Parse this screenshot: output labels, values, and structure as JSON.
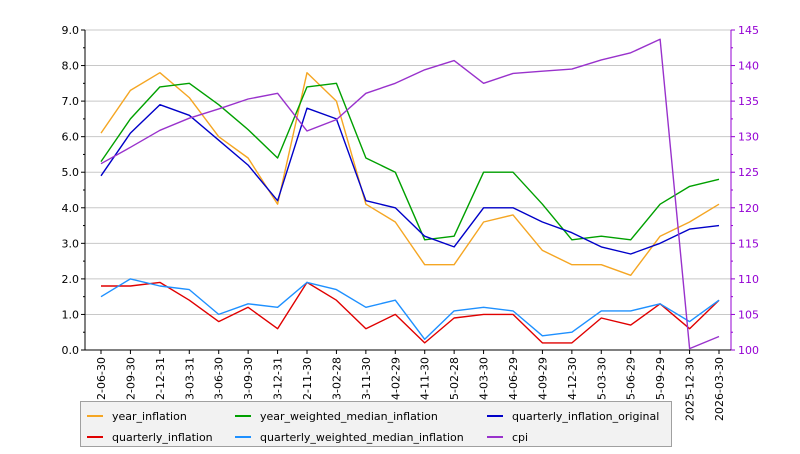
{
  "chart_data": {
    "type": "line",
    "categories": [
      "2-06-30",
      "2-09-30",
      "2-12-31",
      "3-03-31",
      "3-06-30",
      "3-09-30",
      "3-12-31",
      "2-11-30",
      "3-02-28",
      "3-11-30",
      "4-02-29",
      "4-11-30",
      "5-02-28",
      "4-03-30",
      "4-06-29",
      "4-09-29",
      "4-12-30",
      "5-03-30",
      "5-06-29",
      "5-09-29",
      "2025-12-30",
      "2026-03-30"
    ],
    "left_axis": {
      "ylim": [
        0,
        9
      ],
      "ticks": [
        "0.0",
        "1.0",
        "2.0",
        "3.0",
        "4.0",
        "5.0",
        "6.0",
        "7.0",
        "8.0",
        "9.0"
      ],
      "color": "#000000"
    },
    "right_axis": {
      "ylim": [
        100,
        145
      ],
      "ticks": [
        "100",
        "105",
        "110",
        "115",
        "120",
        "125",
        "130",
        "135",
        "140",
        "145"
      ],
      "color": "#9400d3"
    },
    "grid": "horizontal",
    "legend_position": "bottom",
    "series": [
      {
        "name": "year_inflation",
        "axis": "left",
        "color": "#f5a623",
        "values": [
          6.1,
          7.3,
          7.8,
          7.1,
          6.0,
          5.4,
          4.1,
          7.8,
          7.0,
          4.1,
          3.6,
          2.4,
          2.4,
          3.6,
          3.8,
          2.8,
          2.4,
          2.4,
          2.1,
          3.2,
          3.6,
          4.1
        ]
      },
      {
        "name": "year_weighted_median_inflation",
        "axis": "left",
        "color": "#00a000",
        "values": [
          5.3,
          6.5,
          7.4,
          7.5,
          6.9,
          6.2,
          5.4,
          7.4,
          7.5,
          5.4,
          5.0,
          3.1,
          3.2,
          5.0,
          5.0,
          4.1,
          3.1,
          3.2,
          3.1,
          4.1,
          4.6,
          4.8
        ]
      },
      {
        "name": "quarterly_inflation_original",
        "axis": "left",
        "color": "#0000c8",
        "values": [
          4.9,
          6.1,
          6.9,
          6.6,
          5.9,
          5.2,
          4.2,
          6.8,
          6.5,
          4.2,
          4.0,
          3.2,
          2.9,
          4.0,
          4.0,
          3.6,
          3.3,
          2.9,
          2.7,
          3.0,
          3.4,
          3.5
        ]
      },
      {
        "name": "quarterly_inflation",
        "axis": "left",
        "color": "#e00000",
        "values": [
          1.8,
          1.8,
          1.9,
          1.4,
          0.8,
          1.2,
          0.6,
          1.9,
          1.4,
          0.6,
          1.0,
          0.2,
          0.9,
          1.0,
          1.0,
          0.2,
          0.2,
          0.9,
          0.7,
          1.3,
          0.6,
          1.4
        ]
      },
      {
        "name": "quarterly_weighted_median_inflation",
        "axis": "left",
        "color": "#1e90ff",
        "values": [
          1.5,
          2.0,
          1.8,
          1.7,
          1.0,
          1.3,
          1.2,
          1.9,
          1.7,
          1.2,
          1.4,
          0.3,
          1.1,
          1.2,
          1.1,
          0.4,
          0.5,
          1.1,
          1.1,
          1.3,
          0.8,
          1.4
        ]
      },
      {
        "name": "cpi",
        "axis": "right",
        "color": "#9932cc",
        "values": [
          126.2,
          128.5,
          130.9,
          132.6,
          133.9,
          135.3,
          136.1,
          130.8,
          132.4,
          136.1,
          137.5,
          139.4,
          140.7,
          137.5,
          138.9,
          139.2,
          139.5,
          140.8,
          141.8,
          143.7,
          100.2,
          101.9
        ]
      }
    ]
  }
}
